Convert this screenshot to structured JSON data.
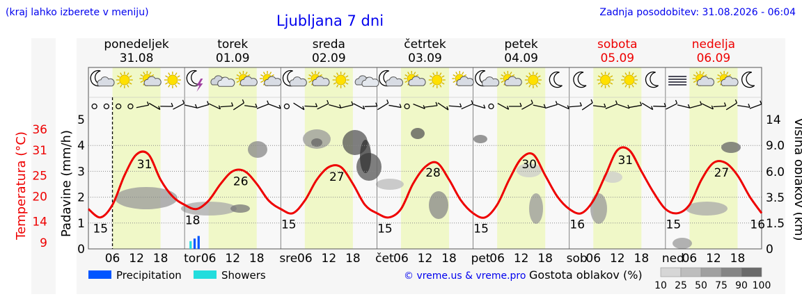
{
  "header": {
    "hint": "(kraj lahko izberete v meniju)",
    "title": "Ljubljana 7 dni",
    "updated": "Zadnja posodobitev: 31.08.2026 - 06:04"
  },
  "days": [
    {
      "name": "ponedeljek",
      "date": "31.08",
      "weekend": false,
      "short": ""
    },
    {
      "name": "torek",
      "date": "01.09",
      "weekend": false,
      "short": "tor"
    },
    {
      "name": "sreda",
      "date": "02.09",
      "weekend": false,
      "short": "sre"
    },
    {
      "name": "četrtek",
      "date": "03.09",
      "weekend": false,
      "short": "čet"
    },
    {
      "name": "petek",
      "date": "04.09",
      "weekend": false,
      "short": "pet"
    },
    {
      "name": "sobota",
      "date": "05.09",
      "weekend": true,
      "short": "sob"
    },
    {
      "name": "nedelja",
      "date": "06.09",
      "weekend": true,
      "short": "ned"
    }
  ],
  "weather_icons": [
    [
      "moon-cloud-icon",
      "sun-icon",
      "sun-cloud-icon",
      "sun-icon"
    ],
    [
      "moon-storm-icon",
      "cloud-icon",
      "sun-cloud-icon",
      "sun-cloud-icon"
    ],
    [
      "moon-cloud-icon",
      "sun-cloud-icon",
      "sun-icon",
      "cloud-icon"
    ],
    [
      "moon-cloud-icon",
      "sun-cloud-icon",
      "sun-icon",
      "sun-cloud-icon"
    ],
    [
      "moon-cloud-icon",
      "sun-cloud-icon",
      "sun-icon",
      "moon-icon"
    ],
    [
      "moon-icon",
      "sun-icon",
      "sun-icon",
      "moon-icon"
    ],
    [
      "fog-icon",
      "sun-cloud-icon",
      "sun-cloud-icon",
      "moon-icon"
    ]
  ],
  "chart_data": {
    "type": "line",
    "x_tick_labels": [
      "06",
      "12",
      "18"
    ],
    "left_axis_precip": {
      "label": "Padavine (mm/h)",
      "ticks": [
        0,
        1,
        2,
        3,
        4,
        5
      ],
      "range": [
        0,
        5
      ]
    },
    "left_axis_temp": {
      "label": "Temperatura (°C)",
      "ticks": [
        9,
        14,
        20,
        25,
        31,
        36
      ]
    },
    "right_axis": {
      "label": "Višina oblakov (km)",
      "ticks": [
        "0",
        "1.5",
        "3.5",
        "6.0",
        "9.0",
        "14"
      ]
    },
    "temperature": {
      "times_h": [
        0,
        3,
        6,
        9,
        12,
        15,
        18,
        21,
        24,
        27,
        30,
        33,
        36,
        39,
        42,
        45,
        48,
        51,
        54,
        57,
        60,
        63,
        66,
        69,
        72,
        75,
        78,
        81,
        84,
        87,
        90,
        93,
        96,
        99,
        102,
        105,
        108,
        111,
        114,
        117,
        120,
        123,
        126,
        129,
        132,
        135,
        138,
        141,
        144,
        147,
        150,
        153,
        156,
        159,
        162,
        165,
        168
      ],
      "values_c": [
        17,
        15,
        18,
        25,
        30,
        30,
        24,
        20,
        18,
        17,
        19,
        23,
        26,
        26,
        23,
        19,
        17,
        16,
        19,
        24,
        27,
        27,
        23,
        18,
        16,
        15,
        17,
        23,
        27,
        28,
        24,
        19,
        16,
        15,
        18,
        24,
        29,
        30,
        25,
        20,
        17,
        16,
        19,
        25,
        31,
        31,
        26,
        21,
        17,
        16,
        18,
        24,
        28,
        28,
        25,
        20,
        16
      ],
      "labels": [
        {
          "t": 3,
          "text": "15"
        },
        {
          "t": 14,
          "text": "31"
        },
        {
          "t": 26,
          "text": "18"
        },
        {
          "t": 38,
          "text": "26"
        },
        {
          "t": 50,
          "text": "15"
        },
        {
          "t": 62,
          "text": "27"
        },
        {
          "t": 74,
          "text": "15"
        },
        {
          "t": 86,
          "text": "28"
        },
        {
          "t": 98,
          "text": "15"
        },
        {
          "t": 110,
          "text": "30"
        },
        {
          "t": 122,
          "text": "16"
        },
        {
          "t": 134,
          "text": "31"
        },
        {
          "t": 146,
          "text": "15"
        },
        {
          "t": 158,
          "text": "27"
        },
        {
          "t": 167,
          "text": "16"
        }
      ]
    },
    "precipitation": [
      {
        "t": 25.5,
        "mm": 0.3,
        "type": "showers"
      },
      {
        "t": 26.5,
        "mm": 0.4,
        "type": "precipitation"
      },
      {
        "t": 27.5,
        "mm": 0.5,
        "type": "precipitation"
      }
    ],
    "now_hour": 6
  },
  "legend": {
    "precip_label": "Precipitation",
    "showers_label": "Showers",
    "precip_color": "#0055ff",
    "showers_color": "#22dddd",
    "credits": "© vreme.us & vreme.pro",
    "cloud_title": "Gostota oblakov (%)",
    "cloud_levels": [
      "10",
      "25",
      "50",
      "75",
      "90",
      "100"
    ]
  },
  "colors": {
    "temp_line": "#ee0000",
    "day_band": "#f0f8c8",
    "weekend": "#ee0000",
    "accent": "#0000ee"
  }
}
